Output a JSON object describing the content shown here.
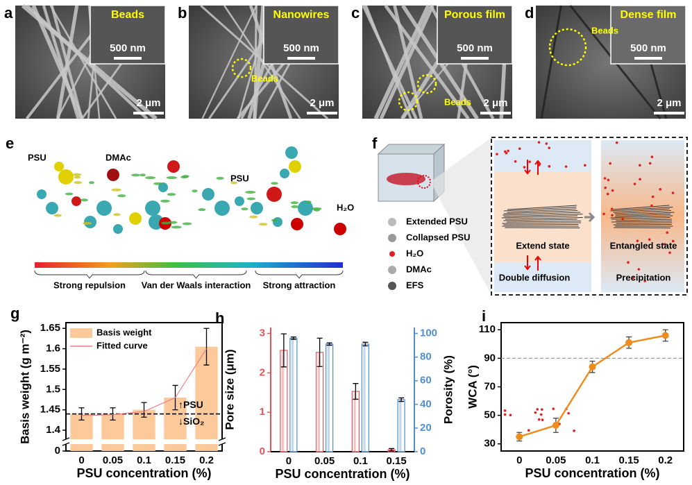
{
  "figure": {
    "sem_panels": [
      {
        "letter": "a",
        "inset_label": "Beads",
        "inset_scale": "500 nm",
        "scale": "2 μm"
      },
      {
        "letter": "b",
        "inset_label": "Nanowires",
        "inset_scale": "500 nm",
        "scale": "2 μm",
        "callout": "Beads"
      },
      {
        "letter": "c",
        "inset_label": "Porous film",
        "inset_scale": "500 nm",
        "scale": "2 μm",
        "callout": "Beads"
      },
      {
        "letter": "d",
        "inset_label": "Dense film",
        "inset_scale": "500 nm",
        "scale": "2 μm",
        "callout": "Beads"
      }
    ],
    "panel_e": {
      "letter": "e",
      "molecule_labels": [
        "PSU",
        "DMAc",
        "PSU",
        "H₂O"
      ],
      "colorbar_labels": [
        "Strong repulsion",
        "Van der Waals interaction",
        "Strong attraction"
      ]
    },
    "panel_f": {
      "letter": "f",
      "legend": [
        "Extended PSU",
        "Collapsed PSU",
        "H₂O",
        "DMAc",
        "EFS"
      ],
      "state_labels": [
        "Extend state",
        "Double diffusion",
        "Entangled state",
        "Precipitation"
      ]
    }
  },
  "chart_data": [
    {
      "letter": "g",
      "type": "bar",
      "x_label": "PSU concentration (%)",
      "y_label": "Basis weight (g m⁻²)",
      "categories": [
        "0",
        "0.05",
        "0.1",
        "0.15",
        "0.2"
      ],
      "series": [
        {
          "name": "Basis weight",
          "color": "#fbc99a",
          "values": [
            1.44,
            1.44,
            1.45,
            1.48,
            1.605
          ],
          "errors": [
            0.015,
            0.015,
            0.018,
            0.03,
            0.045
          ]
        },
        {
          "name": "Fitted curve",
          "color": "#f07f86",
          "values": [
            1.436,
            1.438,
            1.446,
            1.48,
            1.6
          ]
        }
      ],
      "ylim": [
        1.383,
        1.664
      ],
      "yticks": [
        1.4,
        1.45,
        1.5,
        1.55,
        1.6,
        1.65
      ],
      "break_ticks": [
        0
      ],
      "reference_line": 1.44,
      "annotations": [
        "↑PSU",
        "↓SiO₂"
      ]
    },
    {
      "letter": "h",
      "type": "bar",
      "x_label": "PSU concentration (%)",
      "y_label": "Pore size (μm)",
      "y2_label": "Porosity (%)",
      "categories": [
        "0",
        "0.05",
        "0.1",
        "0.15"
      ],
      "series": [
        {
          "color": "#e8525a",
          "values": [
            2.57,
            2.52,
            1.53,
            0.05
          ],
          "errors": [
            0.42,
            0.36,
            0.2,
            0.03
          ]
        },
        {
          "color": "#4f8fcf",
          "axis": "y2",
          "values": [
            96,
            91,
            91,
            44
          ],
          "errors": [
            1,
            1,
            1.5,
            1.5
          ]
        }
      ],
      "ylim": [
        0,
        3.15
      ],
      "yticks": [
        0,
        1,
        2,
        3
      ],
      "y2lim": [
        0,
        105
      ],
      "y2ticks": [
        0,
        20,
        40,
        60,
        80,
        100
      ]
    },
    {
      "letter": "i",
      "type": "line",
      "x_label": "PSU concentration (%)",
      "y_label": "WCA (°)",
      "categories": [
        "0",
        "0.05",
        "0.1",
        "0.15",
        "0.2"
      ],
      "values": [
        35,
        43,
        84,
        101,
        106
      ],
      "errors": [
        3,
        5,
        4,
        4,
        4
      ],
      "color": "#f08c1e",
      "ylim": [
        25,
        115
      ],
      "yticks": [
        30,
        50,
        70,
        90,
        110
      ],
      "reference_line": 90
    }
  ]
}
